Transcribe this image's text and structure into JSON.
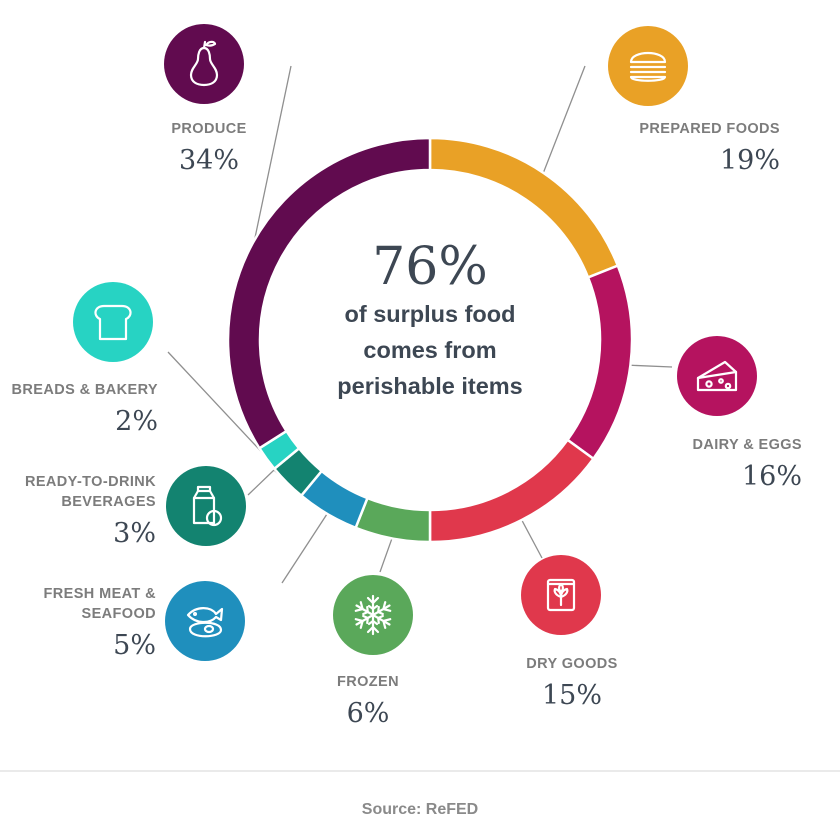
{
  "chart_data": {
    "type": "pie",
    "variant": "donut",
    "title": "",
    "center": {
      "big": "76%",
      "lines": [
        "of surplus food",
        "comes from",
        "perishable items"
      ]
    },
    "slices": [
      {
        "label": "PREPARED FOODS",
        "label_lines": [
          "PREPARED FOODS"
        ],
        "pct_text": "19%",
        "value": 19,
        "color": "#e9a126",
        "icon": "burger-icon"
      },
      {
        "label": "DAIRY & EGGS",
        "label_lines": [
          "DAIRY & EGGS"
        ],
        "pct_text": "16%",
        "value": 16,
        "color": "#b5135f",
        "icon": "cheese-icon"
      },
      {
        "label": "DRY GOODS",
        "label_lines": [
          "DRY GOODS"
        ],
        "pct_text": "15%",
        "value": 15,
        "color": "#e0384c",
        "icon": "grain-bag-icon"
      },
      {
        "label": "FROZEN",
        "label_lines": [
          "FROZEN"
        ],
        "pct_text": "6%",
        "value": 6,
        "color": "#5aa85a",
        "icon": "snowflake-icon"
      },
      {
        "label": "FRESH MEAT & SEAFOOD",
        "label_lines": [
          "FRESH MEAT &",
          "SEAFOOD"
        ],
        "pct_text": "5%",
        "value": 5,
        "color": "#1f8fbd",
        "icon": "fish-meat-icon"
      },
      {
        "label": "READY-TO-DRINK BEVERAGES",
        "label_lines": [
          "READY-TO-DRINK",
          "BEVERAGES"
        ],
        "pct_text": "3%",
        "value": 3,
        "color": "#138370",
        "icon": "beverage-icon"
      },
      {
        "label": "BREADS & BAKERY",
        "label_lines": [
          "BREADS & BAKERY"
        ],
        "pct_text": "2%",
        "value": 2,
        "color": "#27d3c3",
        "icon": "bread-icon"
      },
      {
        "label": "PRODUCE",
        "label_lines": [
          "PRODUCE"
        ],
        "pct_text": "34%",
        "value": 34,
        "color": "#610b4f",
        "icon": "pear-icon"
      }
    ],
    "source": "Source: ReFED"
  }
}
